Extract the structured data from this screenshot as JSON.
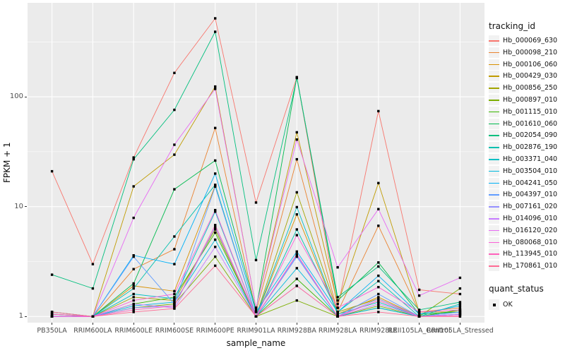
{
  "legend": {
    "tracking_title": "tracking_id",
    "quant_title": "quant_status",
    "quant_label": "OK"
  },
  "chart_data": {
    "type": "line",
    "title": "",
    "xlabel": "sample_name",
    "ylabel": "FPKM + 1",
    "y_scale": "log10",
    "ylim": [
      0.88,
      716
    ],
    "y_ticks": [
      1,
      10,
      100
    ],
    "y_minor_breaks": [
      3.1623,
      31.623,
      316.23
    ],
    "grid": true,
    "legend_position": "right",
    "point_marker": "black-square",
    "style": {
      "panel_bg": "#EBEBEB",
      "grid_color": "#FFFFFF",
      "tick_text_color": "#4D4D4D",
      "point_color": "#000000",
      "legend_key_bg": "#F2F2F2"
    },
    "categories": [
      "PB350LA",
      "RRIM600LA",
      "RRIM600LE",
      "RRIM600SE",
      "RRIM600PE",
      "RRIM901LA",
      "RRIM928BA",
      "RRIM928LA",
      "RRIM928LE",
      "RRII105LA_Control",
      "RRII105LA_Stressed"
    ],
    "series": [
      {
        "name": "Hb_000069_630",
        "color": "#F8766D",
        "values": [
          21,
          3.0,
          28,
          165,
          518,
          10.9,
          150,
          1.2,
          74,
          1.75,
          1.6
        ]
      },
      {
        "name": "Hb_000098_210",
        "color": "#EA8331",
        "values": [
          1.05,
          1.0,
          2.7,
          4.1,
          52,
          1.1,
          27,
          1.1,
          6.7,
          1.1,
          1.2
        ]
      },
      {
        "name": "Hb_000106_060",
        "color": "#D89000",
        "values": [
          1.0,
          1.0,
          1.9,
          1.7,
          15.5,
          1.0,
          8.5,
          1.05,
          1.5,
          1.0,
          1.15
        ]
      },
      {
        "name": "Hb_000429_030",
        "color": "#C09B00",
        "values": [
          1.1,
          1.0,
          15.3,
          29.7,
          124,
          1.2,
          47.5,
          1.3,
          16.4,
          1.1,
          1.1
        ]
      },
      {
        "name": "Hb_000856_250",
        "color": "#A3A500",
        "values": [
          1.0,
          1.0,
          1.5,
          1.4,
          6.2,
          1.0,
          13.5,
          1.1,
          1.45,
          1.0,
          1.05
        ]
      },
      {
        "name": "Hb_000897_010",
        "color": "#7CAE00",
        "values": [
          1.0,
          1.0,
          1.2,
          1.3,
          3.5,
          1.0,
          1.4,
          1.0,
          1.25,
          1.0,
          1.8
        ]
      },
      {
        "name": "Hb_001115_010",
        "color": "#39B600",
        "values": [
          1.05,
          1.0,
          1.3,
          1.5,
          5.8,
          1.0,
          2.2,
          1.0,
          1.2,
          1.0,
          1.15
        ]
      },
      {
        "name": "Hb_001610_060",
        "color": "#00BB4E",
        "values": [
          1.0,
          1.0,
          2.0,
          14.4,
          26.3,
          1.15,
          151,
          1.4,
          3.1,
          1.05,
          1.1
        ]
      },
      {
        "name": "Hb_002054_090",
        "color": "#00BF7D",
        "values": [
          2.4,
          1.8,
          27,
          76,
          391,
          3.26,
          148,
          1.5,
          2.85,
          1.15,
          1.35
        ]
      },
      {
        "name": "Hb_002876_190",
        "color": "#00C0AF",
        "values": [
          1.0,
          1.0,
          1.8,
          5.35,
          15.8,
          1.0,
          6.2,
          1.1,
          2.1,
          1.0,
          1.3
        ]
      },
      {
        "name": "Hb_003371_040",
        "color": "#00BFC4",
        "values": [
          1.1,
          1.0,
          1.6,
          1.45,
          9.0,
          1.0,
          9.9,
          1.05,
          1.35,
          1.0,
          1.1
        ]
      },
      {
        "name": "Hb_003504_010",
        "color": "#00BADE",
        "values": [
          1.0,
          1.0,
          1.25,
          1.35,
          5.0,
          1.0,
          2.75,
          1.0,
          1.2,
          1.0,
          1.05
        ]
      },
      {
        "name": "Hb_004241_050",
        "color": "#00B0F6",
        "values": [
          1.0,
          1.0,
          3.6,
          3.0,
          20,
          1.1,
          3.9,
          1.1,
          2.35,
          1.05,
          1.25
        ]
      },
      {
        "name": "Hb_004397_010",
        "color": "#619CFF",
        "values": [
          1.0,
          1.0,
          3.5,
          1.3,
          15.2,
          1.0,
          3.5,
          1.0,
          1.6,
          1.0,
          1.1
        ]
      },
      {
        "name": "Hb_007161_020",
        "color": "#9590FF",
        "values": [
          1.05,
          1.0,
          1.2,
          1.25,
          6.5,
          1.0,
          3.6,
          1.0,
          1.45,
          1.0,
          1.05
        ]
      },
      {
        "name": "Hb_014096_010",
        "color": "#C77CFF",
        "values": [
          1.0,
          1.0,
          1.3,
          1.2,
          4.3,
          1.0,
          1.9,
          1.0,
          1.3,
          1.0,
          1.05
        ]
      },
      {
        "name": "Hb_016120_020",
        "color": "#E76BF3",
        "values": [
          1.0,
          1.0,
          7.9,
          36.6,
          118,
          1.2,
          40.8,
          2.8,
          9.5,
          1.55,
          2.25
        ]
      },
      {
        "name": "Hb_080068_010",
        "color": "#FB61D7",
        "values": [
          1.0,
          1.0,
          1.4,
          1.6,
          9.3,
          1.0,
          5.5,
          1.2,
          1.85,
          1.1,
          1.15
        ]
      },
      {
        "name": "Hb_113945_010",
        "color": "#FF62BC",
        "values": [
          1.05,
          1.0,
          1.15,
          1.25,
          6.8,
          1.0,
          3.7,
          1.0,
          1.4,
          1.0,
          1.02
        ]
      },
      {
        "name": "Hb_170861_010",
        "color": "#FF6B94",
        "values": [
          1.1,
          1.0,
          1.1,
          1.18,
          2.9,
          1.0,
          1.9,
          1.0,
          1.1,
          1.0,
          1.0
        ]
      }
    ]
  }
}
